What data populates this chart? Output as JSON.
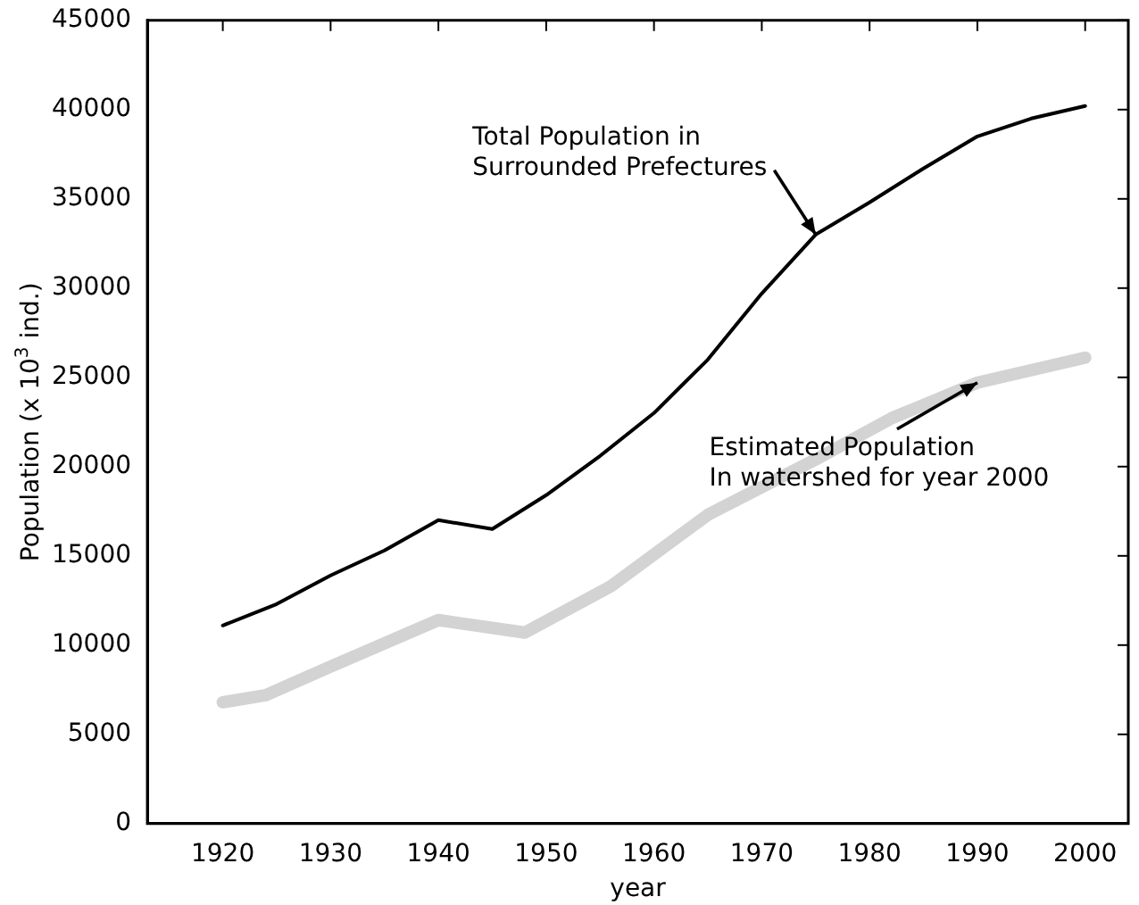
{
  "chart_data": {
    "type": "line",
    "xlabel": "year",
    "ylabel": "Population (x 10$^{3}$ ind.)",
    "xlim": [
      1913,
      2004
    ],
    "xticks": [
      1920,
      1930,
      1940,
      1950,
      1960,
      1970,
      1980,
      1990,
      2000
    ],
    "ylim": [
      0,
      45000
    ],
    "yticks": [
      0,
      5000,
      10000,
      15000,
      20000,
      25000,
      30000,
      35000,
      40000,
      45000
    ],
    "grid": false,
    "legend": false,
    "marker": "none",
    "line_style": "solid",
    "series": [
      {
        "color": "#000000",
        "x": [
          1920,
          1925,
          1930,
          1935,
          1940,
          1945,
          1950,
          1955,
          1960,
          1965,
          1970,
          1975,
          1980,
          1985,
          1990,
          1995,
          2000
        ],
        "values": [
          11100,
          12300,
          13900,
          15300,
          17000,
          16500,
          18400,
          20600,
          23000,
          26000,
          29700,
          33000,
          34800,
          36700,
          38500,
          39500,
          40200
        ]
      },
      {
        "color": "#d3d3d3",
        "x": [
          1920,
          1924,
          1930,
          1940,
          1948,
          1956,
          1965,
          1975,
          1982,
          1990,
          2000
        ],
        "values": [
          6800,
          7200,
          8800,
          11400,
          10700,
          13300,
          17300,
          20400,
          22700,
          24700,
          26100
        ]
      }
    ],
    "annotations": [
      {
        "text": "Total Population in\nSurrounded Prefectures",
        "x": 1975,
        "y": 33000
      },
      {
        "text": "Estimated Population\nIn watershed for year 2000",
        "x": 1990,
        "y": 24700
      }
    ]
  }
}
